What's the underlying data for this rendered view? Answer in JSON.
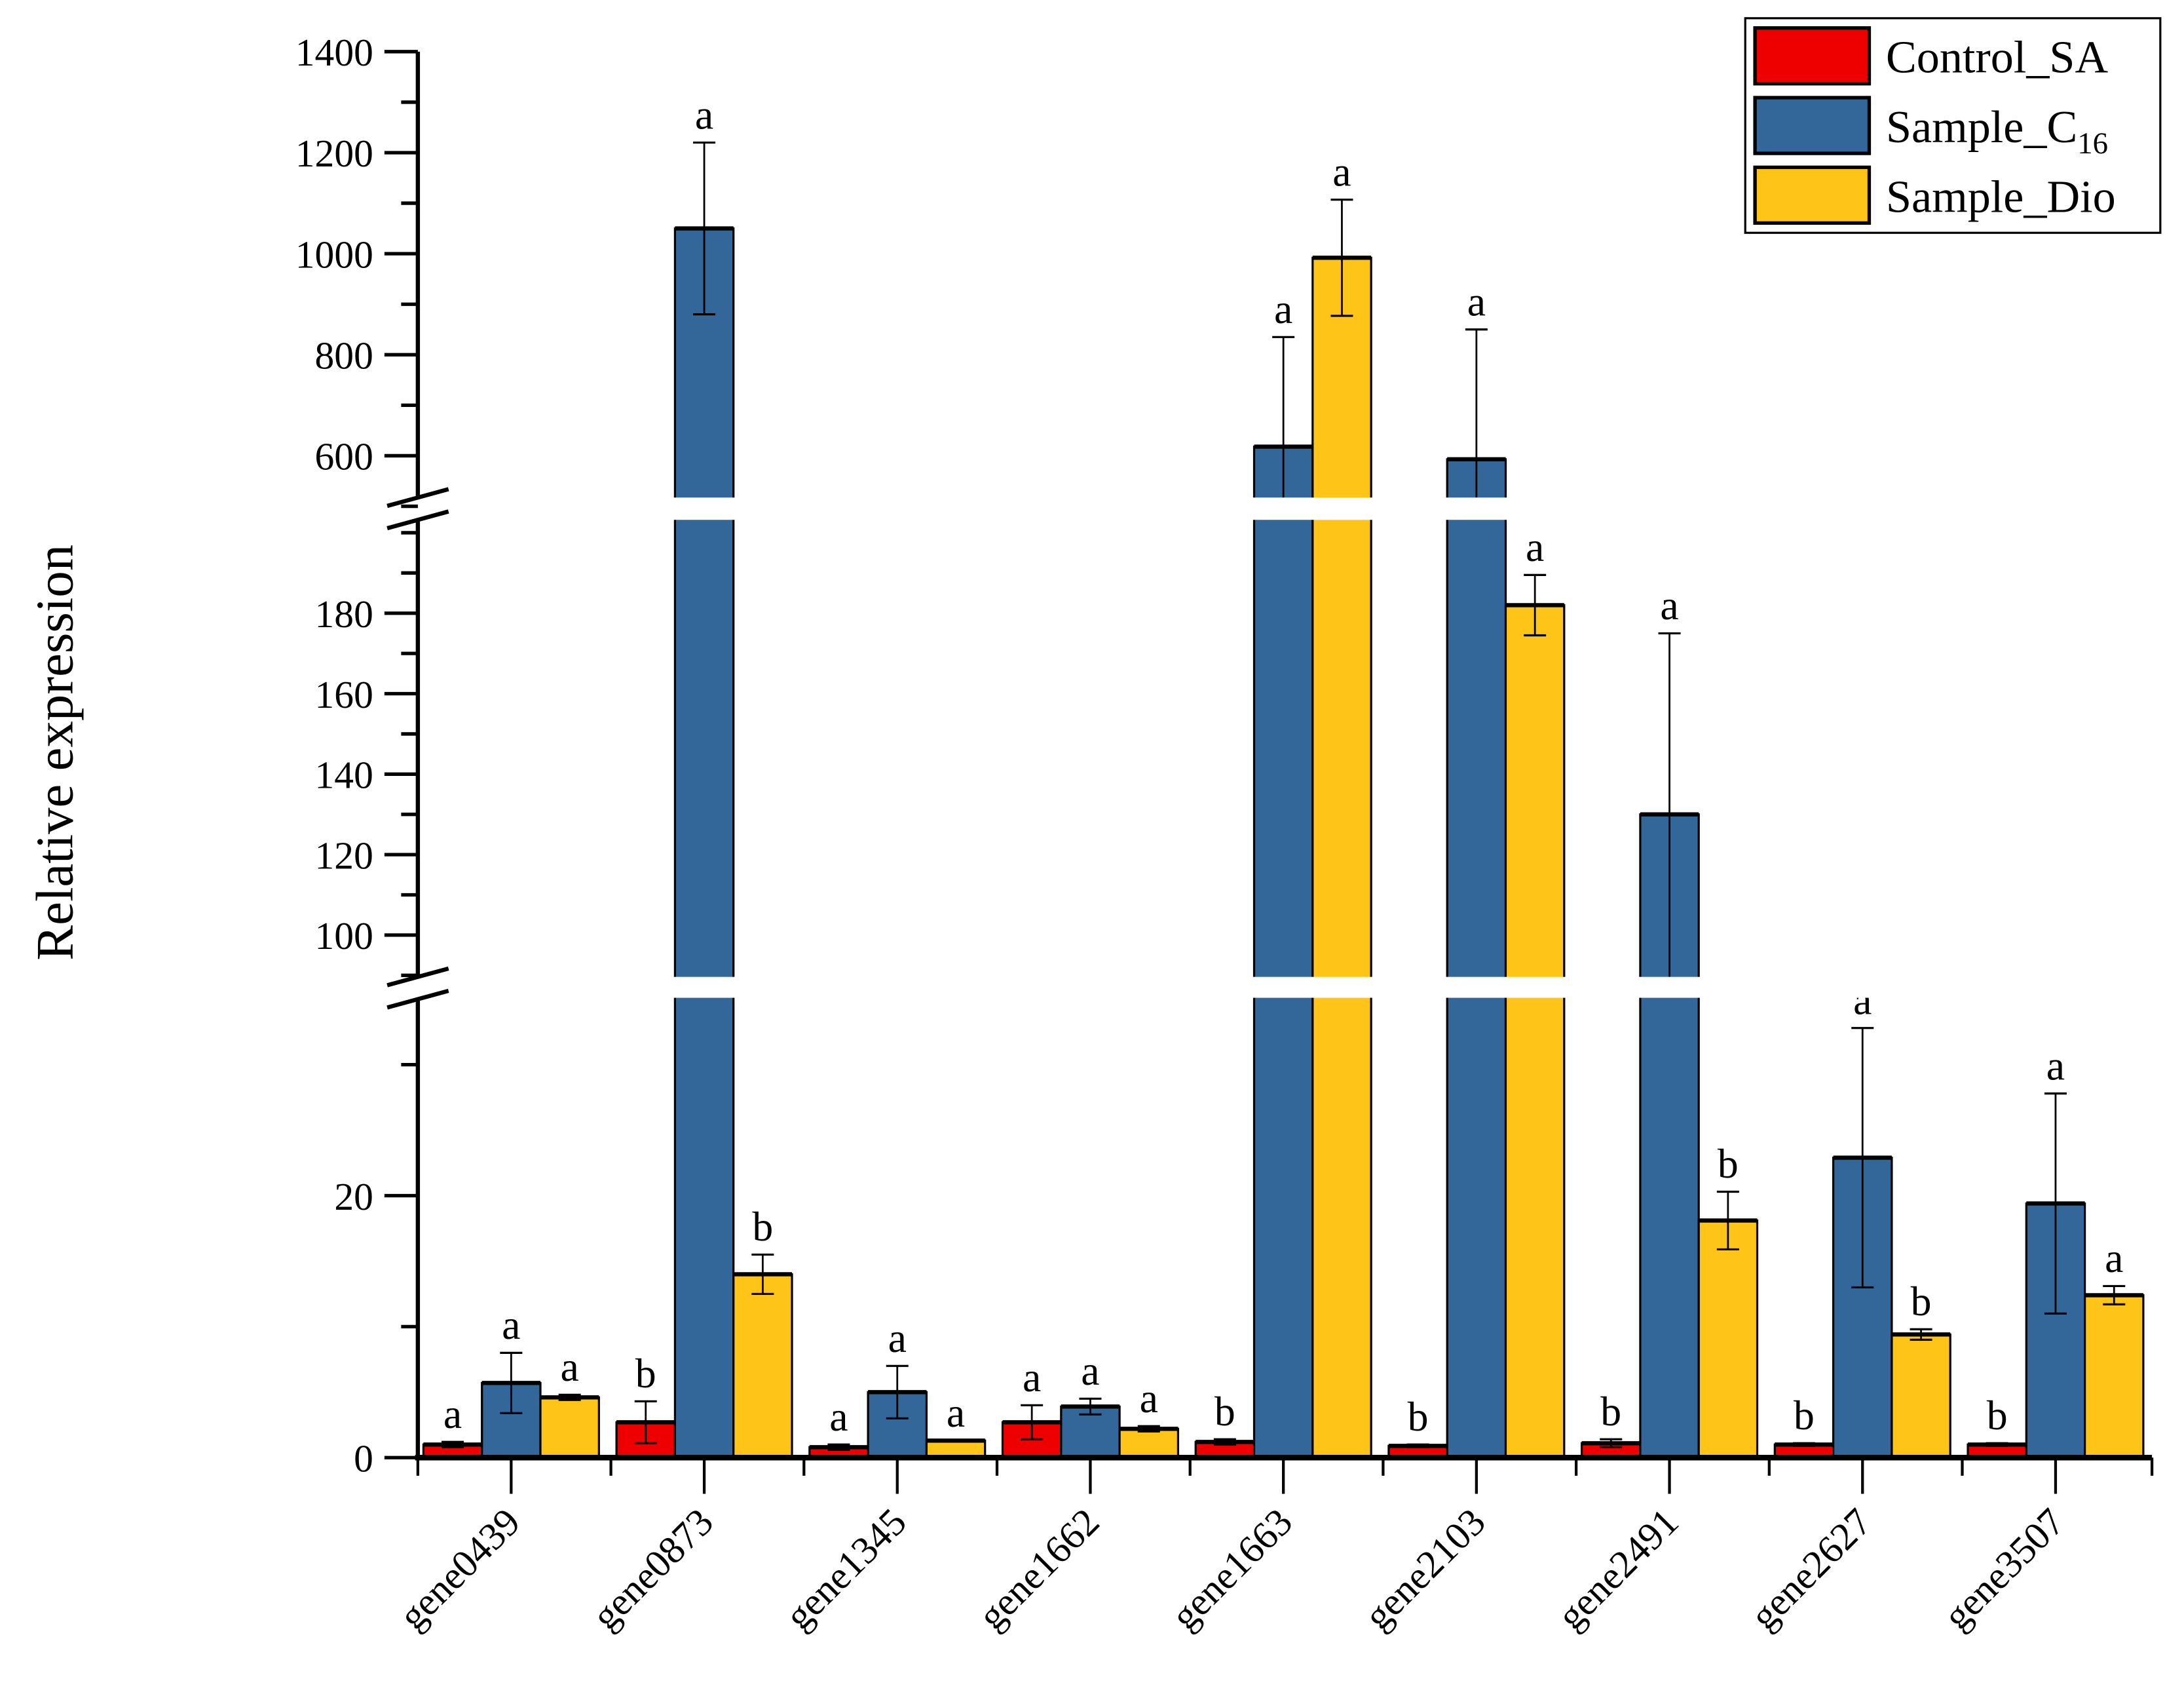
{
  "chart_data": {
    "type": "bar",
    "ylabel": "Relative expression",
    "xlabel": "",
    "categories": [
      "gene0439",
      "gene0873",
      "gene1345",
      "gene1662",
      "gene1663",
      "gene2103",
      "gene2491",
      "gene2627",
      "gene3507"
    ],
    "series": [
      {
        "name": "Control_SA",
        "legend_main": "Control_SA",
        "legend_sub": "",
        "color": "#EE0000",
        "values": [
          1.0,
          2.7,
          0.8,
          2.7,
          1.2,
          0.9,
          1.1,
          1.0,
          1.0
        ],
        "errors": [
          0.2,
          1.6,
          0.2,
          1.3,
          0.2,
          0.1,
          0.3,
          0.1,
          0.1
        ],
        "letters": [
          "a",
          "b",
          "a",
          "a",
          "b",
          "b",
          "b",
          "b",
          "b"
        ]
      },
      {
        "name": "Sample_C16",
        "legend_main": "Sample_C",
        "legend_sub": "16",
        "color": "#336699",
        "values": [
          5.7,
          1050,
          5.0,
          3.9,
          618,
          593,
          130,
          22.9,
          19.4
        ],
        "errors": [
          2.3,
          170,
          2.0,
          0.6,
          217,
          257,
          45,
          9.9,
          8.4
        ],
        "letters": [
          "a",
          "a",
          "a",
          "a",
          "a",
          "a",
          "a",
          "a",
          "a"
        ]
      },
      {
        "name": "Sample_Dio",
        "legend_main": "Sample_Dio",
        "legend_sub": "",
        "color": "#FFC418",
        "values": [
          4.6,
          14.0,
          1.3,
          2.2,
          992,
          182,
          18.1,
          9.4,
          12.4
        ],
        "errors": [
          0.2,
          1.5,
          0.0,
          0.2,
          115,
          7.5,
          2.2,
          0.4,
          0.7
        ],
        "letters": [
          "a",
          "b",
          "a",
          "a",
          "a",
          "a",
          "b",
          "b",
          "a"
        ]
      }
    ],
    "y_axis_segments": [
      {
        "range": [
          0,
          35
        ],
        "tick_labels": [
          "0",
          "20"
        ],
        "ticks": [
          0,
          10,
          20,
          30
        ]
      },
      {
        "range": [
          84,
          206
        ],
        "tick_labels": [
          "100",
          "120",
          "140",
          "160",
          "180"
        ],
        "ticks": [
          90,
          100,
          110,
          120,
          130,
          140,
          150,
          160,
          170,
          180,
          190,
          200
        ]
      },
      {
        "range": [
          495,
          1400
        ],
        "tick_labels": [
          "600",
          "800",
          "1000",
          "1200",
          "1400"
        ],
        "ticks": [
          500,
          600,
          700,
          800,
          900,
          1000,
          1100,
          1200,
          1300,
          1400
        ]
      }
    ],
    "legend_position": "top-right",
    "grid": false
  }
}
